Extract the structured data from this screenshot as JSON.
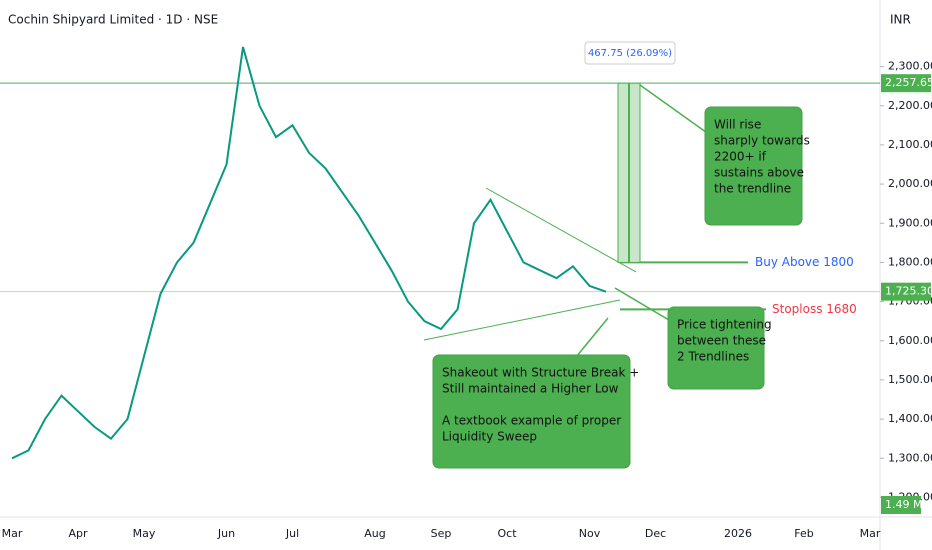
{
  "chart_data": {
    "type": "line",
    "title": "Cochin Shipyard Limited · 1D · NSE",
    "currency": "INR",
    "color": "#089981",
    "categories": [
      "Mar",
      null,
      null,
      null,
      "Apr",
      null,
      null,
      null,
      "May",
      null,
      null,
      null,
      null,
      "Jun",
      null,
      null,
      null,
      "Jul",
      null,
      null,
      null,
      null,
      "Aug",
      null,
      null,
      null,
      "Sep",
      null,
      null,
      null,
      "Oct",
      null,
      null,
      null,
      null,
      "Nov",
      null,
      null,
      null,
      "Dec",
      null,
      null,
      null,
      null,
      "2026",
      null,
      null,
      null,
      "Feb",
      null,
      null,
      null,
      "Mar"
    ],
    "values": [
      1300,
      1320,
      1400,
      1460,
      1420,
      1380,
      1350,
      1400,
      1560,
      1720,
      1800,
      1850,
      1950,
      2050,
      2350,
      2200,
      2120,
      2150,
      2080,
      2040,
      1980,
      1920,
      1850,
      1780,
      1700,
      1650,
      1630,
      1680,
      1900,
      1960,
      1880,
      1800,
      1780,
      1760,
      1790,
      1740,
      1725.3,
      null,
      null,
      null,
      null,
      null,
      null,
      null,
      null,
      null,
      null,
      null,
      null,
      null,
      null,
      null,
      null
    ],
    "ylim": [
      1150,
      2470
    ],
    "yticks": [
      {
        "value": 1200,
        "label": "1,200.00"
      },
      {
        "value": 1300,
        "label": "1,300.00"
      },
      {
        "value": 1400,
        "label": "1,400.00"
      },
      {
        "value": 1500,
        "label": "1,500.00"
      },
      {
        "value": 1600,
        "label": "1,600.00"
      },
      {
        "value": 1700,
        "label": "1,700.00"
      },
      {
        "value": 1800,
        "label": "1,800.00"
      },
      {
        "value": 1900,
        "label": "1,900.00"
      },
      {
        "value": 2000,
        "label": "2,000.00"
      },
      {
        "value": 2100,
        "label": "2,100.00"
      },
      {
        "value": 2200,
        "label": "2,200.00"
      },
      {
        "value": 2300,
        "label": "2,300.00"
      }
    ],
    "levels": [
      {
        "value": 2257.65,
        "label": "2,257.65"
      },
      {
        "value": 1725.3,
        "label": "1,725.30"
      }
    ],
    "buy": {
      "value": 1800,
      "label": "Buy Above 1800"
    },
    "stoploss": {
      "value": 1680,
      "label": "Stoploss 1680"
    },
    "measure": "467.75 (26.09%)",
    "volume_label": "1.49 M",
    "annotations": [
      [
        "Will rise",
        "sharply towards",
        "2200+ if",
        "sustains above",
        "the trendline"
      ],
      [
        "Price tightening",
        "between these",
        "2 Trendlines"
      ],
      [
        "Shakeout with Structure Break +",
        "Still maintained a Higher Low",
        "",
        "A textbook example of proper",
        "Liquidity Sweep"
      ]
    ]
  }
}
